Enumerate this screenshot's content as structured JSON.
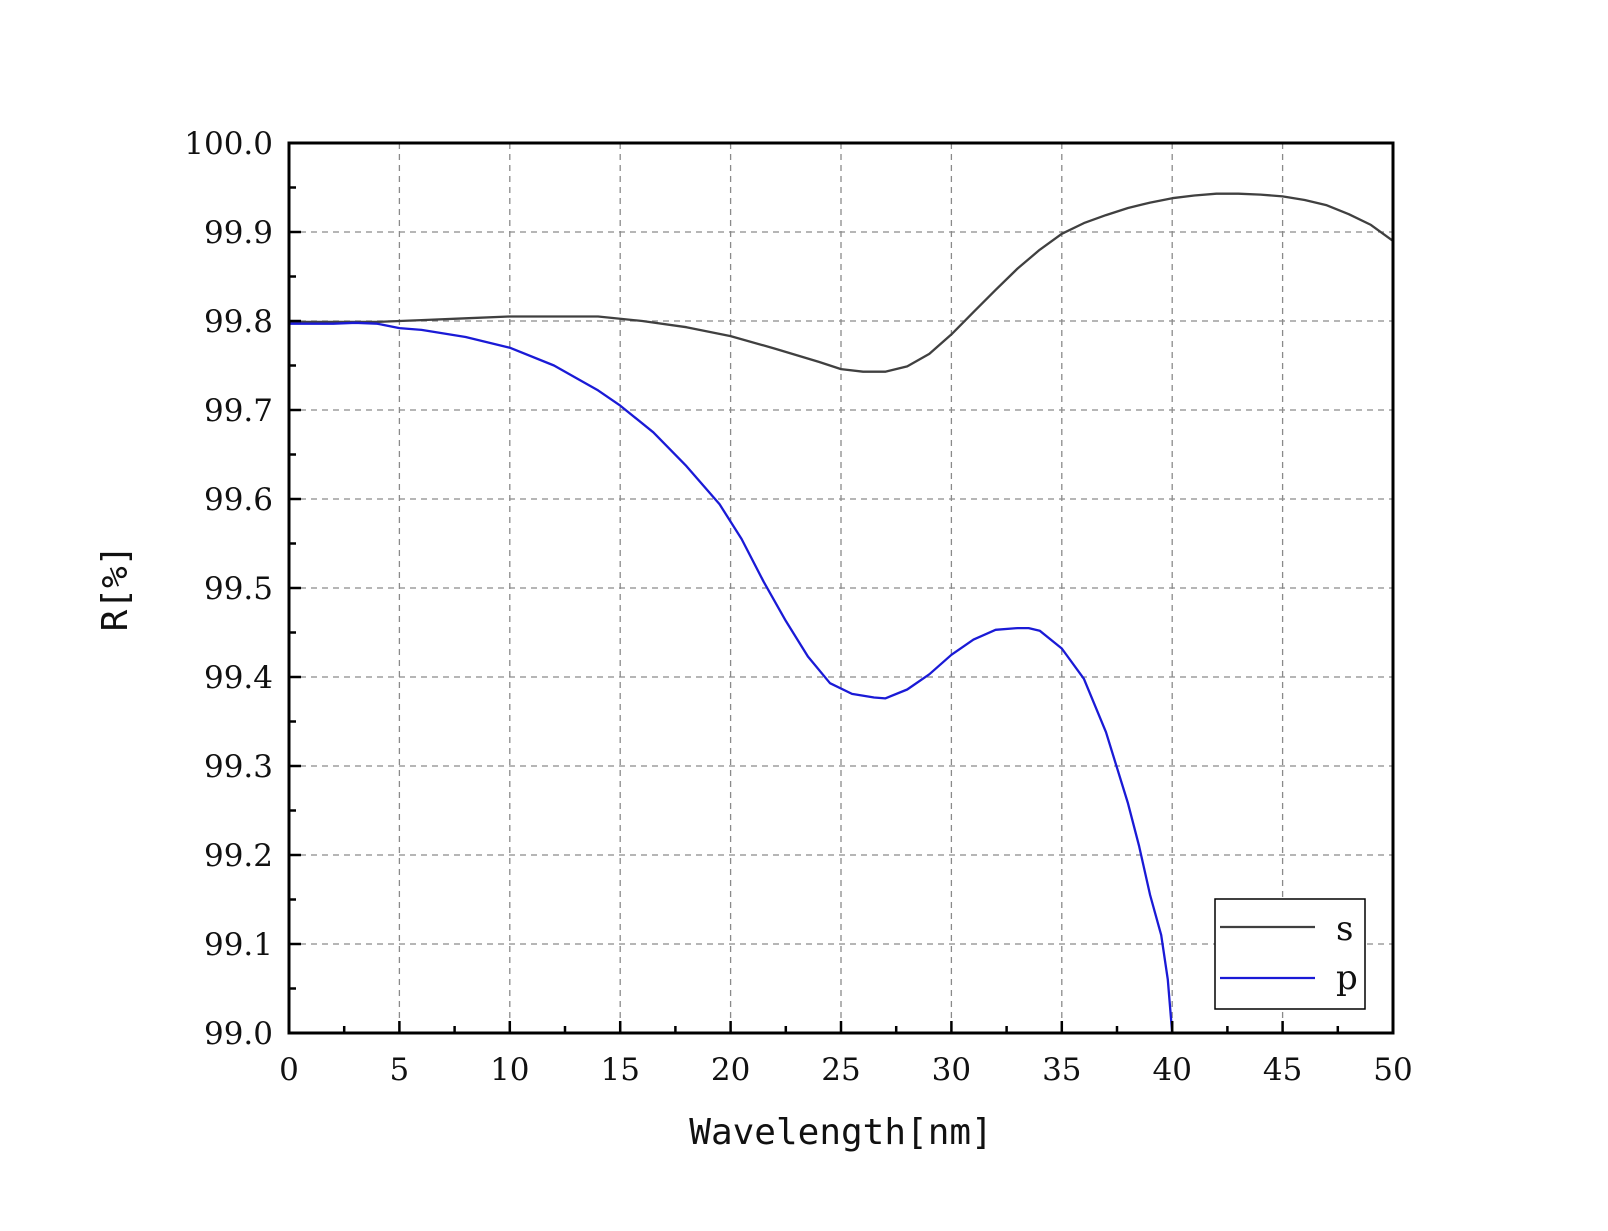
{
  "chart_data": {
    "type": "line",
    "title": "",
    "xlabel": "Wavelength[nm]",
    "ylabel": "R[%]",
    "xlim": [
      0,
      50
    ],
    "ylim": [
      99.0,
      100.0
    ],
    "xticks": [
      0,
      5,
      10,
      15,
      20,
      25,
      30,
      35,
      40,
      45,
      50
    ],
    "xtick_labels": [
      "0",
      "5",
      "10",
      "15",
      "20",
      "25",
      "30",
      "35",
      "40",
      "45",
      "50"
    ],
    "yticks": [
      99.0,
      99.1,
      99.2,
      99.3,
      99.4,
      99.5,
      99.6,
      99.7,
      99.8,
      99.9,
      100.0
    ],
    "ytick_labels": [
      "99.0",
      "99.1",
      "99.2",
      "99.3",
      "99.4",
      "99.5",
      "99.6",
      "99.7",
      "99.8",
      "99.9",
      "100.0"
    ],
    "grid": true,
    "legend_position": "bottom-right",
    "series": [
      {
        "name": "s",
        "color": "#404040",
        "x": [
          0,
          2,
          4,
          6,
          8,
          10,
          12,
          14,
          16,
          18,
          20,
          22,
          24,
          25,
          26,
          27,
          28,
          29,
          30,
          31,
          32,
          33,
          34,
          35,
          36,
          37,
          38,
          39,
          40,
          41,
          42,
          43,
          44,
          45,
          46,
          47,
          48,
          49,
          50
        ],
        "y": [
          99.799,
          99.799,
          99.799,
          99.801,
          99.803,
          99.805,
          99.805,
          99.805,
          99.8,
          99.793,
          99.783,
          99.769,
          99.754,
          99.746,
          99.743,
          99.743,
          99.749,
          99.763,
          99.785,
          99.81,
          99.835,
          99.859,
          99.88,
          99.898,
          99.91,
          99.919,
          99.927,
          99.933,
          99.938,
          99.941,
          99.943,
          99.943,
          99.942,
          99.94,
          99.936,
          99.93,
          99.92,
          99.908,
          99.89
        ]
      },
      {
        "name": "p",
        "color": "#1a1ad6",
        "x": [
          0,
          2,
          3,
          4,
          5,
          6,
          8,
          10,
          12,
          14,
          15,
          16.5,
          18,
          19.5,
          20.5,
          21.5,
          22.5,
          23.5,
          24.5,
          25.5,
          26.5,
          27,
          28,
          29,
          30,
          31,
          32,
          33,
          33.5,
          34,
          35,
          36,
          37,
          38,
          38.5,
          39,
          39.5,
          39.8,
          40
        ],
        "y": [
          99.797,
          99.797,
          99.798,
          99.797,
          99.792,
          99.79,
          99.782,
          99.77,
          99.75,
          99.722,
          99.705,
          99.675,
          99.637,
          99.594,
          99.555,
          99.507,
          99.463,
          99.423,
          99.393,
          99.381,
          99.377,
          99.376,
          99.386,
          99.403,
          99.425,
          99.442,
          99.453,
          99.455,
          99.455,
          99.452,
          99.432,
          99.398,
          99.338,
          99.258,
          99.21,
          99.155,
          99.11,
          99.06,
          99.0
        ]
      }
    ]
  }
}
